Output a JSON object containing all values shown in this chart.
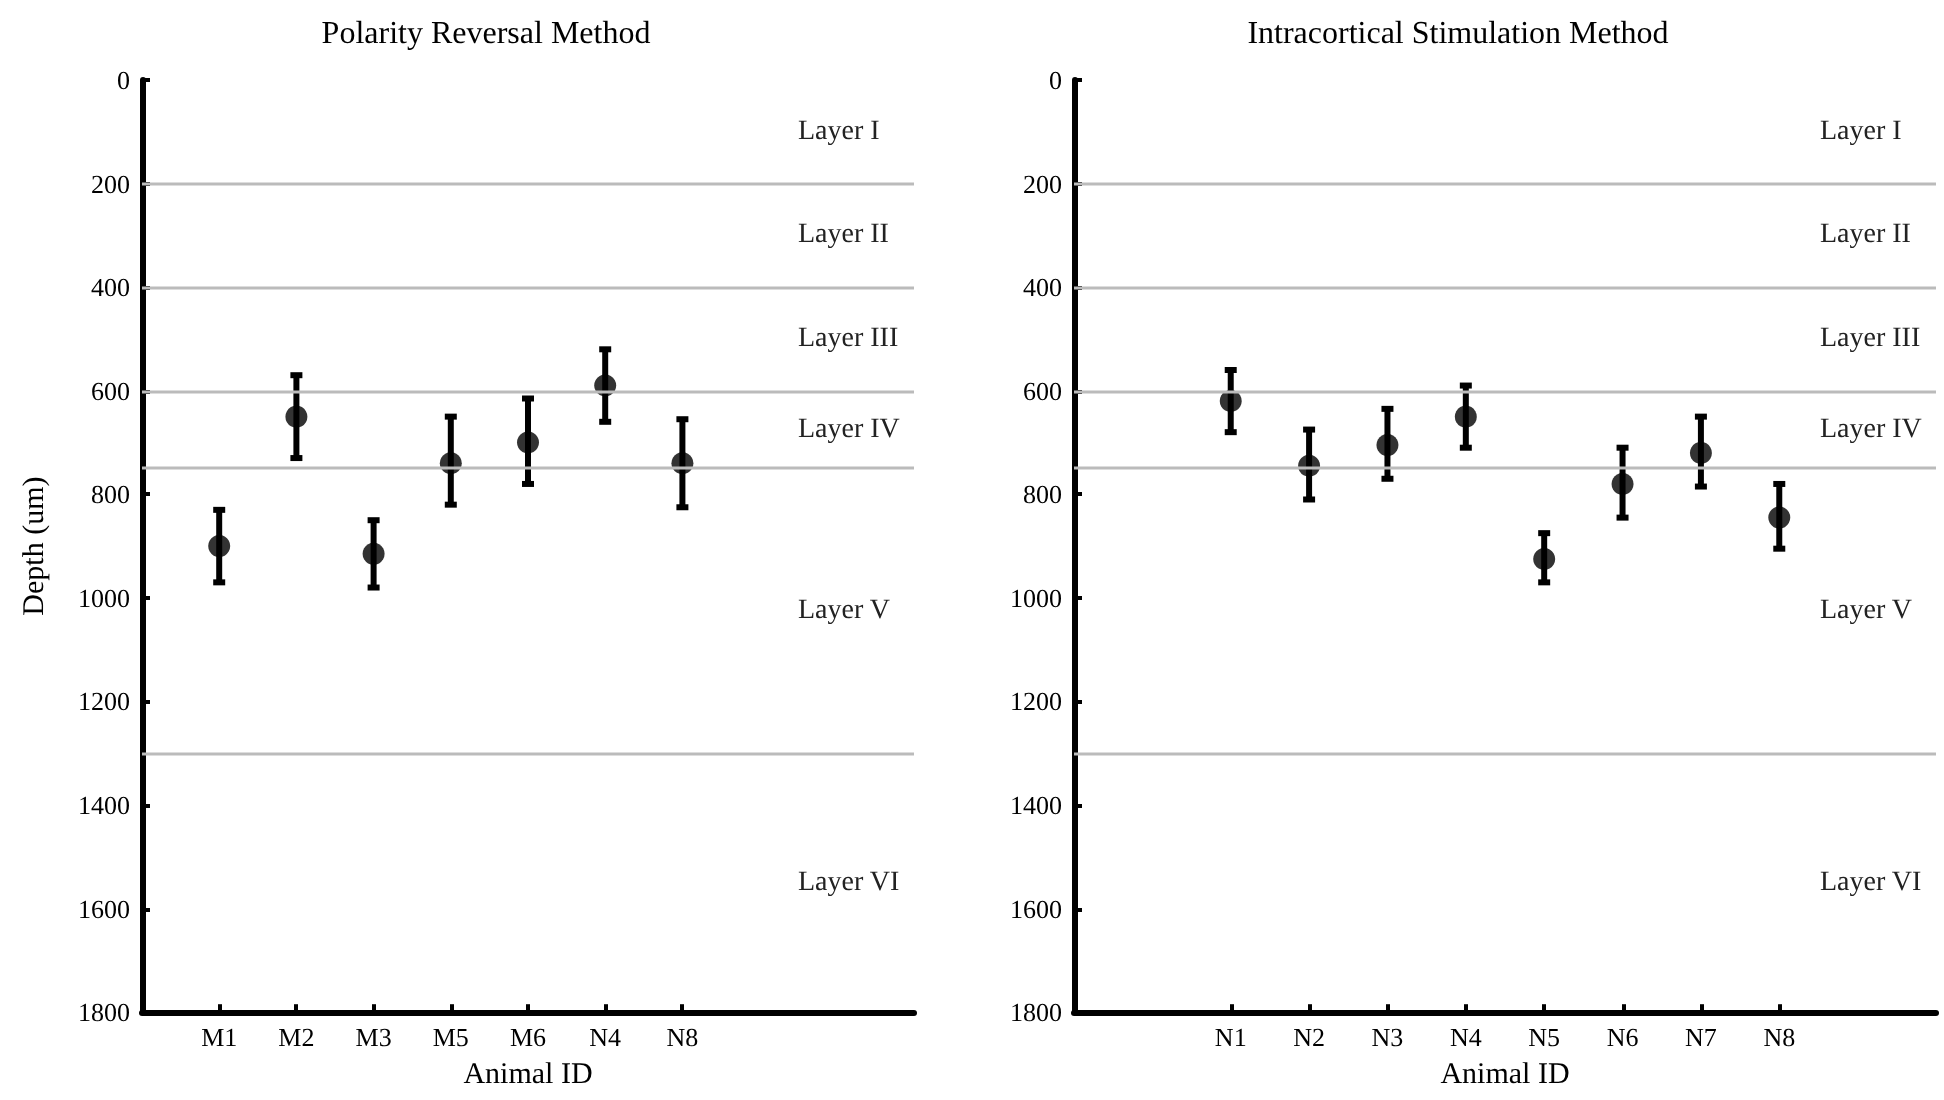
{
  "chart_data": [
    {
      "type": "scatter",
      "title": "Polarity Reversal Method",
      "xlabel": "Animal ID",
      "ylabel": "Depth (um)",
      "categories": [
        null,
        "M1",
        "M2",
        "M3",
        "M5",
        "M6",
        "N4",
        "N8",
        null,
        null,
        null
      ],
      "series": [
        {
          "color": "#000000",
          "values": [
            null,
            900,
            650,
            915,
            740,
            700,
            590,
            740,
            null,
            null,
            null
          ],
          "errors": [
            null,
            [
              830,
              970
            ],
            [
              570,
              730
            ],
            [
              850,
              980
            ],
            [
              650,
              820
            ],
            [
              615,
              780
            ],
            [
              520,
              660
            ],
            [
              655,
              825
            ],
            null,
            null,
            null
          ]
        }
      ],
      "ylim": [
        1800,
        0
      ],
      "yticks": [
        0,
        200,
        400,
        600,
        800,
        1000,
        1200,
        1400,
        1600,
        1800
      ],
      "grid": false,
      "marker": "circle",
      "ref_lines": [
        {
          "axis": "y",
          "value": 200,
          "color": "#bbbbbb"
        },
        {
          "axis": "y",
          "value": 400,
          "color": "#bbbbbb"
        },
        {
          "axis": "y",
          "value": 600,
          "color": "#bbbbbb"
        },
        {
          "axis": "y",
          "value": 750,
          "color": "#bbbbbb"
        },
        {
          "axis": "y",
          "value": 1300,
          "color": "#bbbbbb"
        }
      ],
      "annotations": [
        "Layer I",
        "Layer II",
        "Layer III",
        "Layer IV",
        "Layer V",
        "Layer VI"
      ]
    },
    {
      "type": "scatter",
      "title": "Intracortical Stimulation Method",
      "xlabel": "Animal ID",
      "categories": [
        null,
        null,
        "N1",
        "N2",
        "N3",
        "N4",
        "N5",
        "N6",
        "N7",
        "N8",
        null,
        null
      ],
      "series": [
        {
          "color": "#000000",
          "values": [
            null,
            null,
            620,
            745,
            705,
            650,
            925,
            780,
            720,
            845,
            null,
            null
          ],
          "errors": [
            null,
            null,
            [
              560,
              680
            ],
            [
              675,
              810
            ],
            [
              635,
              770
            ],
            [
              590,
              710
            ],
            [
              875,
              970
            ],
            [
              710,
              845
            ],
            [
              650,
              785
            ],
            [
              780,
              905
            ],
            null,
            null
          ]
        }
      ],
      "ylim": [
        1800,
        0
      ],
      "yticks": [
        0,
        200,
        400,
        600,
        800,
        1000,
        1200,
        1400,
        1600,
        1800
      ],
      "grid": false,
      "marker": "circle",
      "ref_lines": [
        {
          "axis": "y",
          "value": 200,
          "color": "#bbbbbb"
        },
        {
          "axis": "y",
          "value": 400,
          "color": "#bbbbbb"
        },
        {
          "axis": "y",
          "value": 600,
          "color": "#bbbbbb"
        },
        {
          "axis": "y",
          "value": 750,
          "color": "#bbbbbb"
        },
        {
          "axis": "y",
          "value": 1300,
          "color": "#bbbbbb"
        }
      ],
      "annotations": [
        "Layer I",
        "Layer II",
        "Layer III",
        "Layer IV",
        "Layer V",
        "Layer VI"
      ]
    }
  ]
}
